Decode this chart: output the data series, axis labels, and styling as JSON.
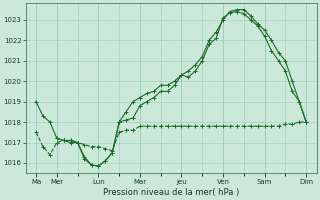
{
  "title": "",
  "xlabel": "Pression niveau de la mer( hPa )",
  "background_color": "#cce8d8",
  "plot_bg_color": "#cce8d8",
  "grid_color": "#99ccbb",
  "line_color": "#1a6b2a",
  "line_color2": "#2a8a3a",
  "ylim": [
    1015.5,
    1023.8
  ],
  "yticks": [
    1016,
    1017,
    1018,
    1019,
    1020,
    1021,
    1022,
    1023
  ],
  "day_labels": [
    "Ma",
    "Mer",
    "",
    "Lun",
    "",
    "Mar",
    "",
    "Jeu",
    "",
    "Ven",
    "",
    "Sam",
    "",
    "Dim"
  ],
  "day_positions": [
    0,
    1,
    2,
    3,
    4,
    5,
    6,
    7,
    8,
    9,
    10,
    11,
    12,
    13
  ],
  "day_tick_labels": [
    "Ma",
    "Mer",
    "Lun",
    "Mar",
    "Jeu",
    "Ven",
    "Sam",
    "Dim"
  ],
  "day_tick_positions": [
    0,
    1,
    3,
    5,
    7,
    9,
    11,
    13
  ],
  "vline_positions": [
    0,
    1,
    3,
    5,
    7,
    9,
    11,
    13
  ],
  "series1_x": [
    0,
    0.33,
    0.67,
    1,
    1.33,
    1.67,
    2,
    2.33,
    2.67,
    3,
    3.33,
    3.67,
    4,
    4.33,
    4.67,
    5,
    5.33,
    5.67,
    6,
    6.33,
    6.67,
    7,
    7.33,
    7.67,
    8,
    8.33,
    8.67,
    9,
    9.33,
    9.67,
    10,
    10.33,
    10.67,
    11,
    11.33,
    11.67,
    12,
    12.33,
    12.67,
    13
  ],
  "series1_y": [
    1019.0,
    1018.3,
    1018.0,
    1017.2,
    1017.1,
    1017.1,
    1017.0,
    1016.2,
    1015.9,
    1015.85,
    1016.1,
    1016.5,
    1018.0,
    1018.1,
    1018.2,
    1018.8,
    1019.0,
    1019.2,
    1019.5,
    1019.5,
    1019.8,
    1020.3,
    1020.2,
    1020.5,
    1021.0,
    1021.8,
    1022.1,
    1023.1,
    1023.35,
    1023.4,
    1023.3,
    1023.0,
    1022.7,
    1022.2,
    1021.5,
    1021.0,
    1020.5,
    1019.5,
    1019.0,
    1018.0
  ],
  "series2_x": [
    0,
    0.33,
    0.67,
    1,
    1.33,
    1.67,
    2,
    2.33,
    2.67,
    3,
    3.33,
    3.67,
    4,
    4.33,
    4.67,
    5,
    5.33,
    5.67,
    6,
    6.33,
    6.67,
    7,
    7.33,
    7.67,
    8,
    8.33,
    8.67,
    9,
    9.33,
    9.67,
    10,
    10.33,
    10.67,
    11,
    11.33,
    11.67,
    12,
    12.33,
    12.67,
    13
  ],
  "series2_y": [
    1017.5,
    1016.8,
    1016.4,
    1017.0,
    1017.1,
    1017.1,
    1017.0,
    1016.9,
    1016.8,
    1016.8,
    1016.7,
    1016.6,
    1017.5,
    1017.6,
    1017.6,
    1017.8,
    1017.8,
    1017.8,
    1017.8,
    1017.8,
    1017.8,
    1017.8,
    1017.8,
    1017.8,
    1017.8,
    1017.8,
    1017.8,
    1017.8,
    1017.8,
    1017.8,
    1017.8,
    1017.8,
    1017.8,
    1017.8,
    1017.8,
    1017.8,
    1017.9,
    1017.9,
    1018.0,
    1018.0
  ],
  "series3_x": [
    1,
    1.33,
    1.67,
    2,
    2.33,
    2.67,
    3,
    3.33,
    3.67,
    4,
    4.33,
    4.67,
    5,
    5.33,
    5.67,
    6,
    6.33,
    6.67,
    7,
    7.33,
    7.67,
    8,
    8.33,
    8.67,
    9,
    9.33,
    9.67,
    10,
    10.33,
    10.67,
    11,
    11.33,
    11.67,
    12,
    12.33,
    12.67,
    13
  ],
  "series3_y": [
    1017.2,
    1017.1,
    1017.0,
    1017.0,
    1016.3,
    1015.9,
    1015.85,
    1016.1,
    1016.5,
    1018.0,
    1018.5,
    1019.0,
    1019.2,
    1019.4,
    1019.5,
    1019.8,
    1019.8,
    1020.0,
    1020.3,
    1020.5,
    1020.8,
    1021.2,
    1022.0,
    1022.4,
    1023.0,
    1023.4,
    1023.5,
    1023.5,
    1023.2,
    1022.8,
    1022.5,
    1022.0,
    1021.4,
    1021.0,
    1020.0,
    1019.0,
    1018.0
  ]
}
